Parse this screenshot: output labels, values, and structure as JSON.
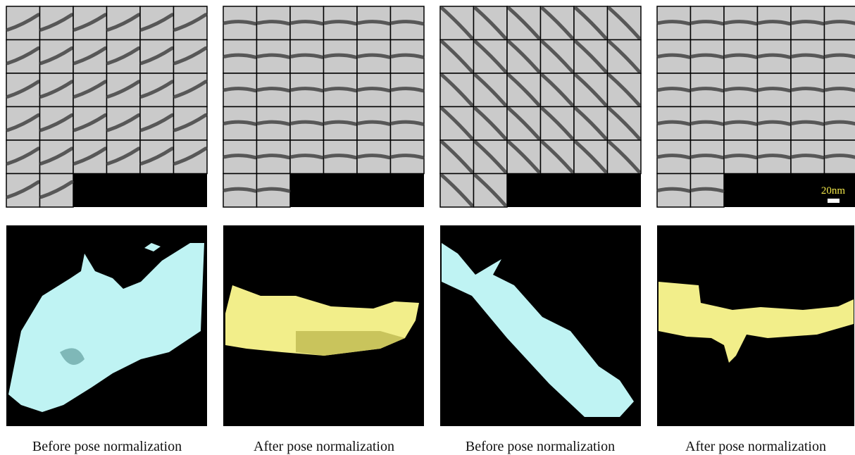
{
  "panels": [
    {
      "caption": "Before pose normalization"
    },
    {
      "caption": "After pose normalization"
    },
    {
      "caption": "Before pose normalization"
    },
    {
      "caption": "After pose normalization"
    }
  ],
  "scale_bar": {
    "label": "20nm"
  }
}
